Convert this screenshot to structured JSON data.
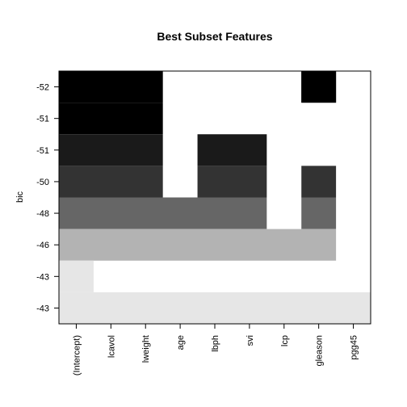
{
  "chart_data": {
    "type": "heatmap",
    "title": "Best Subset Features",
    "ylabel": "bic",
    "xlabel": "",
    "columns": [
      "(Intercept)",
      "lcavol",
      "lweight",
      "age",
      "lbph",
      "svi",
      "lcp",
      "gleason",
      "pgg45"
    ],
    "row_labels_top_to_bottom": [
      "-52",
      "-51",
      "-51",
      "-50",
      "-48",
      "-46",
      "-43",
      "-43"
    ],
    "segments_top_to_bottom": [
      {
        "label": "-52",
        "gray": "#000000",
        "from": 0.0,
        "to": 1.0,
        "included": [
          "(Intercept)",
          "lcavol",
          "lweight",
          "gleason"
        ]
      },
      {
        "label": "-51",
        "gray": "#000000",
        "from": 1.0,
        "to": 2.0,
        "included": [
          "(Intercept)",
          "lcavol",
          "lweight"
        ]
      },
      {
        "label": "-51",
        "gray": "#1a1a1a",
        "from": 2.0,
        "to": 3.0,
        "included": [
          "(Intercept)",
          "lcavol",
          "lweight",
          "lbph",
          "svi"
        ]
      },
      {
        "label": "-50",
        "gray": "#333333",
        "from": 3.0,
        "to": 4.0,
        "included": [
          "(Intercept)",
          "lcavol",
          "lweight",
          "lbph",
          "svi",
          "gleason"
        ]
      },
      {
        "label": "-48",
        "gray": "#666666",
        "from": 4.0,
        "to": 5.0,
        "included": [
          "(Intercept)",
          "lcavol",
          "lweight",
          "age",
          "lbph",
          "svi",
          "gleason"
        ]
      },
      {
        "label": "-46",
        "gray": "#b3b3b3",
        "from": 5.0,
        "to": 6.0,
        "included": [
          "(Intercept)",
          "lcavol",
          "lweight",
          "age",
          "lbph",
          "svi",
          "lcp",
          "gleason"
        ]
      },
      {
        "label": "-43",
        "gray": "#e6e6e6",
        "from": 6.0,
        "to": 7.0,
        "included": [
          "(Intercept)"
        ]
      },
      {
        "label": "-43",
        "gray": "#e6e6e6",
        "from": 7.0,
        "to": 8.0,
        "included": [
          "(Intercept)",
          "lcavol",
          "lweight",
          "age",
          "lbph",
          "svi",
          "lcp",
          "gleason",
          "pgg45"
        ]
      }
    ],
    "extra_cells": [
      {
        "column": "gleason",
        "gray": "#000000",
        "from": 0.0,
        "to": 1.0
      }
    ],
    "background": "#ffffff",
    "grid": false,
    "legend": "none"
  }
}
